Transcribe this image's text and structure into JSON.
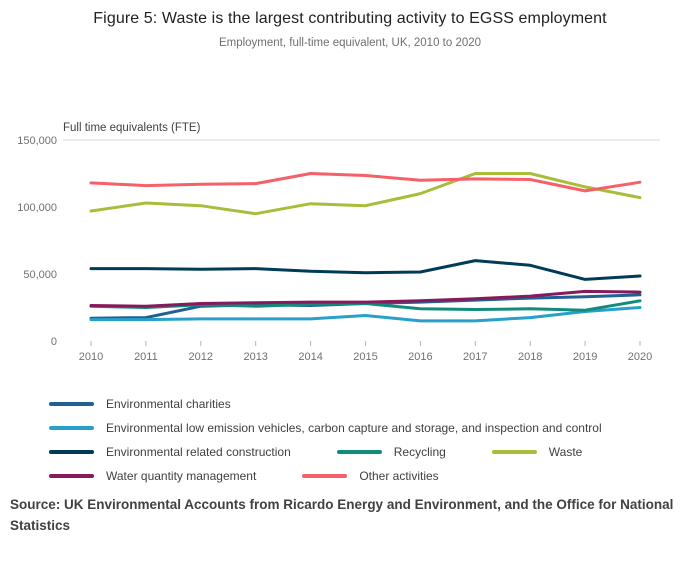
{
  "header": {
    "title": "Figure 5: Waste is the largest contributing activity to EGSS employment",
    "subtitle": "Employment, full-time equivalent, UK, 2010 to 2020"
  },
  "chart_data": {
    "type": "line",
    "axis_title": "Full time equivalents (FTE)",
    "x": [
      2010,
      2011,
      2012,
      2013,
      2014,
      2015,
      2016,
      2017,
      2018,
      2019,
      2020
    ],
    "y_ticks": [
      0,
      50000,
      100000,
      150000
    ],
    "ylim": [
      0,
      150000
    ],
    "grid": "top-line-only",
    "legend_position": "bottom",
    "series": [
      {
        "name": "Environmental charities",
        "color": "#206095",
        "values": [
          17000,
          17500,
          26000,
          27000,
          26500,
          28000,
          29000,
          30500,
          32000,
          33000,
          34500
        ]
      },
      {
        "name": "Environmental low emission vehicles, carbon capture and storage, and inspection and control",
        "color": "#27a0cc",
        "values": [
          16000,
          16000,
          16500,
          16500,
          16500,
          19000,
          15000,
          15000,
          17500,
          22000,
          25000
        ]
      },
      {
        "name": "Environmental related construction",
        "color": "#003c57",
        "values": [
          54000,
          54000,
          53500,
          54000,
          52000,
          51000,
          51500,
          60000,
          56500,
          46000,
          48500
        ]
      },
      {
        "name": "Recycling",
        "color": "#118c7b",
        "values": [
          26000,
          25000,
          27000,
          26000,
          27500,
          28000,
          24000,
          23500,
          24000,
          23000,
          30000
        ]
      },
      {
        "name": "Waste",
        "color": "#a8bd3a",
        "values": [
          97000,
          103000,
          101000,
          95000,
          102500,
          101000,
          110000,
          125000,
          125000,
          115000,
          107000
        ]
      },
      {
        "name": "Water quantity management",
        "color": "#871a5b",
        "values": [
          26500,
          26000,
          28000,
          28500,
          29000,
          29000,
          30000,
          31500,
          33500,
          37000,
          36500
        ]
      },
      {
        "name": "Other activities",
        "color": "#f66068",
        "values": [
          118000,
          116000,
          117000,
          117500,
          125000,
          123500,
          120000,
          121000,
          120500,
          112000,
          118500
        ]
      }
    ]
  },
  "source": {
    "text": "Source: UK Environmental Accounts from Ricardo Energy and Environment, and the Office for National Statistics"
  }
}
